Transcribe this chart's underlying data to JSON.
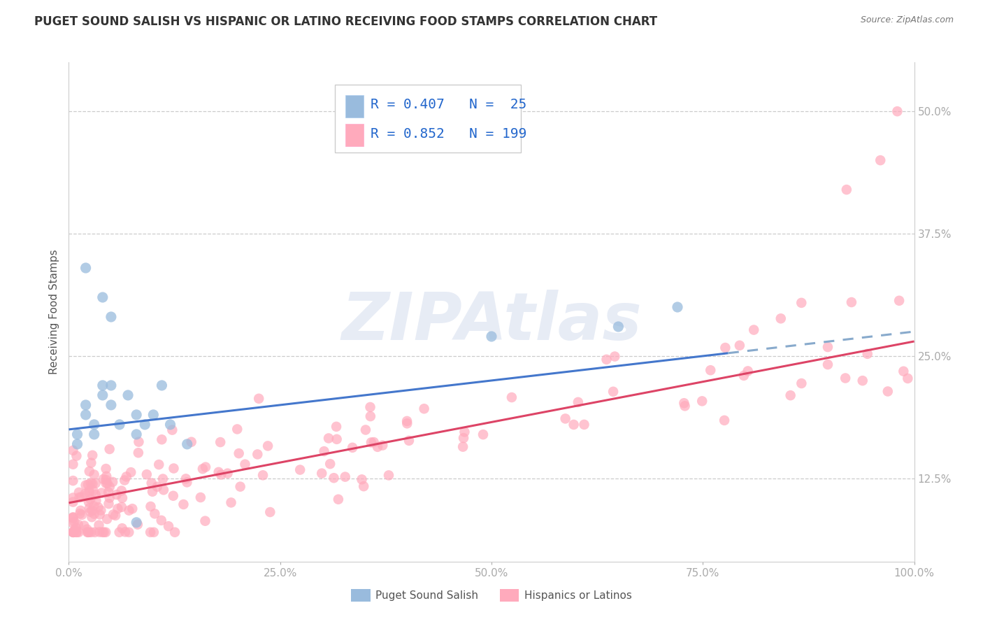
{
  "title": "PUGET SOUND SALISH VS HISPANIC OR LATINO RECEIVING FOOD STAMPS CORRELATION CHART",
  "source": "Source: ZipAtlas.com",
  "ylabel": "Receiving Food Stamps",
  "xlabel": "",
  "xlim": [
    0,
    100
  ],
  "ylim": [
    4,
    55
  ],
  "xticks": [
    0,
    25,
    50,
    75,
    100
  ],
  "xticklabels": [
    "0.0%",
    "25.0%",
    "50.0%",
    "75.0%",
    "100.0%"
  ],
  "yticks": [
    12.5,
    25.0,
    37.5,
    50.0
  ],
  "yticklabels": [
    "12.5%",
    "25.0%",
    "37.5%",
    "50.0%"
  ],
  "blue_color": "#99BBDD",
  "pink_color": "#FFAABC",
  "blue_r": 0.407,
  "blue_n": 25,
  "pink_r": 0.852,
  "pink_n": 199,
  "legend_r_color": "#2266CC",
  "watermark": "ZIPAtlas",
  "watermark_color": "#AABBDD",
  "bg_color": "#FFFFFF",
  "grid_color": "#CCCCCC",
  "title_color": "#333333",
  "blue_line_start_y": 17.5,
  "blue_line_end_y": 27.5,
  "blue_dashed_x": 78,
  "pink_line_start_y": 10.0,
  "pink_line_end_y": 26.5,
  "title_fontsize": 12,
  "axis_fontsize": 11,
  "tick_fontsize": 11,
  "legend_fontsize": 14
}
